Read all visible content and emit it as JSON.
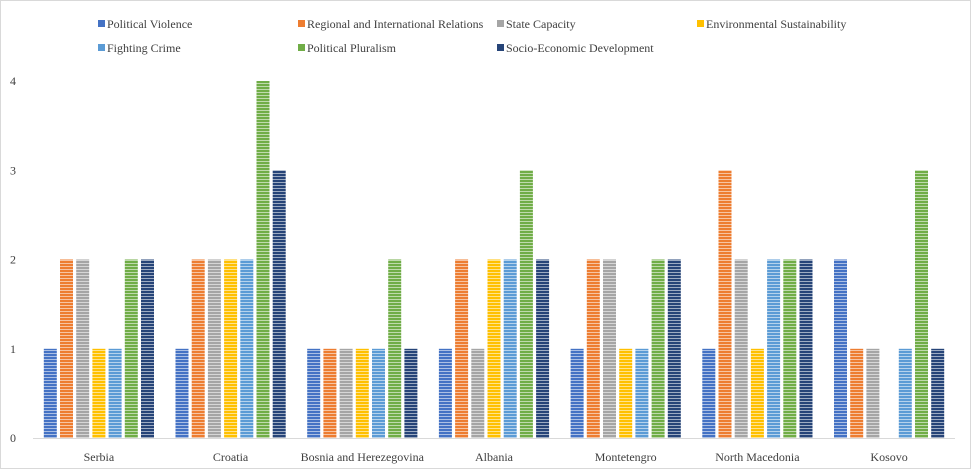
{
  "chart_data": {
    "type": "bar",
    "title": "",
    "xlabel": "",
    "ylabel": "",
    "ylim": [
      0,
      4
    ],
    "yticks": [
      "0",
      "1",
      "2",
      "3",
      "4"
    ],
    "grid": false,
    "legend_position": "top",
    "categories": [
      "Serbia",
      "Croatia",
      "Bosnia and Herezegovina",
      "Albania",
      "Montetengro",
      "North Macedonia",
      "Kosovo"
    ],
    "series": [
      {
        "name": "Political Violence",
        "color": "#4472C4",
        "values": [
          1,
          1,
          1,
          1,
          1,
          1,
          2
        ]
      },
      {
        "name": "Regional and International Relations",
        "color": "#ED7D31",
        "values": [
          2,
          2,
          1,
          2,
          2,
          3,
          1
        ]
      },
      {
        "name": "State Capacity",
        "color": "#A5A5A5",
        "values": [
          2,
          2,
          1,
          1,
          2,
          2,
          1
        ]
      },
      {
        "name": "Environmental Sustainability",
        "color": "#FFC000",
        "values": [
          1,
          2,
          1,
          2,
          1,
          1,
          0
        ]
      },
      {
        "name": "Fighting Crime",
        "color": "#5B9BD5",
        "values": [
          1,
          2,
          1,
          2,
          1,
          2,
          1
        ]
      },
      {
        "name": "Political Pluralism",
        "color": "#70AD47",
        "values": [
          2,
          4,
          2,
          3,
          2,
          2,
          3
        ]
      },
      {
        "name": "Socio-Economic Development",
        "color": "#264478",
        "values": [
          2,
          3,
          1,
          2,
          2,
          2,
          1
        ]
      }
    ]
  }
}
